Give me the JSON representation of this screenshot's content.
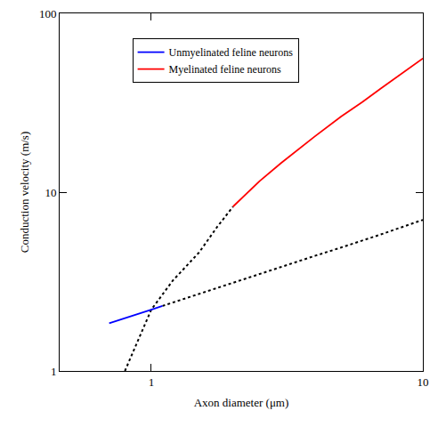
{
  "chart_data": {
    "type": "line",
    "x_label": "Axon diameter (μm)",
    "y_label": "Conduction velocity (m/s)",
    "log": true,
    "grid": false,
    "legend": "top left",
    "xlim": [
      0.46,
      10
    ],
    "ylim": [
      1,
      100
    ],
    "xticks": [
      1,
      10
    ],
    "yticks": [
      1,
      10,
      100
    ],
    "series": [
      {
        "color": "#000000",
        "line_style": "dotted",
        "x": [
          1.1,
          1.5,
          2,
          3,
          4,
          5,
          7,
          10
        ],
        "values": [
          2.31,
          2.7,
          3.1,
          3.8,
          4.4,
          4.9,
          5.8,
          7.0
        ]
      },
      {
        "color": "#000000",
        "line_style": "dotted",
        "x": [
          0.8,
          0.9,
          1.0,
          1.2,
          1.5,
          1.75,
          2
        ],
        "values": [
          1.0,
          1.5,
          2.2,
          3.2,
          4.6,
          6.4,
          8.3
        ]
      },
      {
        "name": "Unmyelinated feline neurons",
        "color": "#0000ff",
        "line_style": "solid",
        "x": [
          0.7,
          0.8,
          0.9,
          1.0,
          1.1
        ],
        "values": [
          1.85,
          1.97,
          2.09,
          2.2,
          2.31
        ]
      },
      {
        "name": "Myelinated feline neurons",
        "color": "#ff0000",
        "line_style": "solid",
        "x": [
          2,
          2.5,
          3,
          4,
          5,
          6,
          7,
          8,
          9,
          10
        ],
        "values": [
          8.3,
          11.5,
          14.5,
          20.5,
          26.5,
          32,
          38,
          44,
          50,
          56
        ]
      }
    ]
  }
}
